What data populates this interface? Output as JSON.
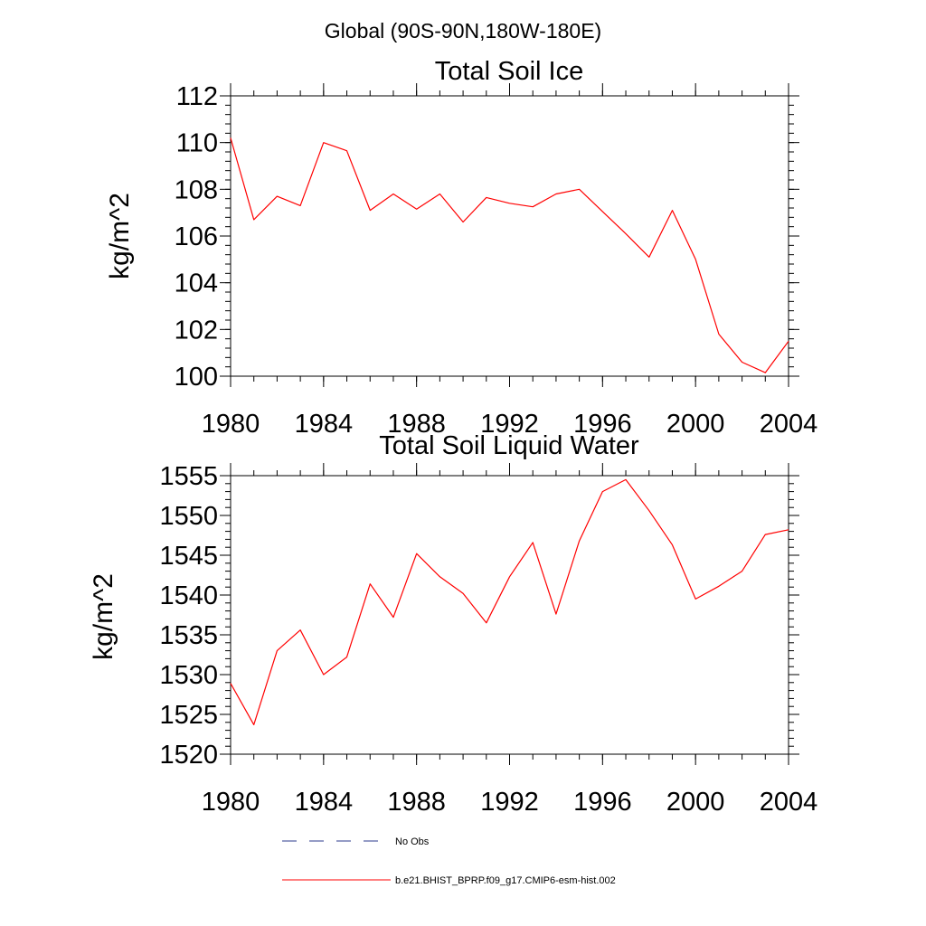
{
  "figure_title": "Global (90S-90N,180W-180E)",
  "colors": {
    "model_line": "#ff0000",
    "obs_line": "#2b3a8c",
    "axis": "#000000"
  },
  "legend": {
    "obs_label": "No Obs",
    "model_label": "b.e21.BHIST_BPRP.f09_g17.CMIP6-esm-hist.002"
  },
  "chart_data": [
    {
      "type": "line",
      "title": "Total Soil Ice",
      "xlabel": "",
      "ylabel": "kg/m^2",
      "xlim": [
        1980,
        2004
      ],
      "ylim": [
        100,
        112
      ],
      "xticks": [
        1980,
        1984,
        1988,
        1992,
        1996,
        2000,
        2004
      ],
      "yticks": [
        100,
        102,
        104,
        106,
        108,
        110,
        112
      ],
      "x": [
        1980,
        1981,
        1982,
        1983,
        1984,
        1985,
        1986,
        1987,
        1988,
        1989,
        1990,
        1991,
        1992,
        1993,
        1994,
        1995,
        1996,
        1997,
        1998,
        1999,
        2000,
        2001,
        2002,
        2003,
        2004
      ],
      "series": [
        {
          "name": "b.e21.BHIST_BPRP.f09_g17.CMIP6-esm-hist.002",
          "values": [
            110.2,
            106.7,
            107.7,
            107.3,
            110.0,
            109.65,
            107.1,
            107.8,
            107.15,
            107.8,
            106.6,
            107.65,
            107.4,
            107.25,
            107.8,
            108.0,
            107.05,
            106.1,
            105.1,
            107.1,
            105.0,
            101.8,
            100.6,
            100.15,
            101.5
          ]
        }
      ]
    },
    {
      "type": "line",
      "title": "Total Soil Liquid Water",
      "xlabel": "",
      "ylabel": "kg/m^2",
      "xlim": [
        1980,
        2004
      ],
      "ylim": [
        1520,
        1555
      ],
      "xticks": [
        1980,
        1984,
        1988,
        1992,
        1996,
        2000,
        2004
      ],
      "yticks": [
        1520,
        1525,
        1530,
        1535,
        1540,
        1545,
        1550,
        1555
      ],
      "x": [
        1980,
        1981,
        1982,
        1983,
        1984,
        1985,
        1986,
        1987,
        1988,
        1989,
        1990,
        1991,
        1992,
        1993,
        1994,
        1995,
        1996,
        1997,
        1998,
        1999,
        2000,
        2001,
        2002,
        2003,
        2004
      ],
      "series": [
        {
          "name": "b.e21.BHIST_BPRP.f09_g17.CMIP6-esm-hist.002",
          "values": [
            1528.9,
            1523.7,
            1533.0,
            1535.6,
            1530.0,
            1532.2,
            1541.4,
            1537.2,
            1545.2,
            1542.3,
            1540.2,
            1536.5,
            1542.3,
            1546.6,
            1537.6,
            1546.8,
            1553.0,
            1554.5,
            1550.6,
            1546.3,
            1539.5,
            1541.1,
            1543.0,
            1547.6,
            1548.2
          ]
        }
      ]
    }
  ]
}
